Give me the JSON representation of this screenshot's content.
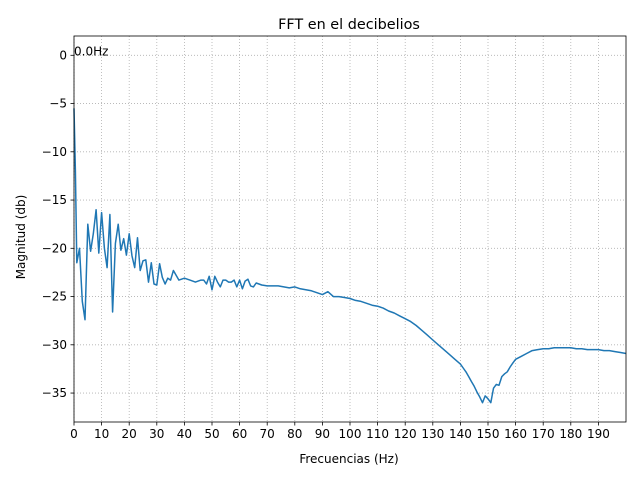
{
  "chart_data": {
    "type": "line",
    "title": "FFT en el decibelios",
    "xlabel": "Frecuencias (Hz)",
    "ylabel": "Magnitud (db)",
    "xlim": [
      0,
      200
    ],
    "ylim": [
      -38,
      2
    ],
    "grid": true,
    "line_color": "#1f77b4",
    "x_ticks": [
      0,
      10,
      20,
      30,
      40,
      50,
      60,
      70,
      80,
      90,
      100,
      110,
      120,
      130,
      140,
      150,
      160,
      170,
      180,
      190
    ],
    "x_tick_labels": [
      "0",
      "10",
      "20",
      "30",
      "40",
      "50",
      "60",
      "70",
      "80",
      "90",
      "100",
      "110",
      "120",
      "130",
      "140",
      "150",
      "160",
      "170",
      "180",
      "190"
    ],
    "y_ticks": [
      0,
      -5,
      -10,
      -15,
      -20,
      -25,
      -30,
      -35
    ],
    "y_tick_labels": [
      "0",
      "−5",
      "−10",
      "−15",
      "−20",
      "−25",
      "−30",
      "−35"
    ],
    "annotations": [
      {
        "text": "0.0Hz",
        "x": 0,
        "y": 0
      }
    ],
    "series": [
      {
        "x": [
          0,
          0.5,
          1,
          2,
          3,
          4,
          5,
          6,
          7,
          8,
          9,
          10,
          11,
          12,
          13,
          14,
          15,
          16,
          17,
          18,
          19,
          20,
          21,
          22,
          23,
          24,
          25,
          26,
          27,
          28,
          29,
          30,
          31,
          32,
          33,
          34,
          35,
          36,
          38,
          40,
          42,
          44,
          46,
          47,
          48,
          49,
          50,
          51,
          52,
          53,
          54,
          55,
          56,
          57,
          58,
          59,
          60,
          61,
          62,
          63,
          64,
          65,
          66,
          68,
          70,
          72,
          74,
          76,
          78,
          80,
          82,
          84,
          86,
          88,
          90,
          92,
          94,
          96,
          98,
          100,
          102,
          104,
          106,
          108,
          110,
          112,
          114,
          116,
          118,
          120,
          122,
          124,
          126,
          128,
          130,
          132,
          134,
          136,
          138,
          140,
          141,
          142,
          143,
          144,
          145,
          146,
          147,
          148,
          149,
          150,
          151,
          152,
          153,
          154,
          155,
          156,
          157,
          158,
          159,
          160,
          162,
          164,
          166,
          168,
          170,
          172,
          174,
          176,
          178,
          180,
          182,
          184,
          186,
          188,
          190,
          192,
          194,
          196,
          198,
          200
        ],
        "y": [
          -5.5,
          -12,
          -21.5,
          -20,
          -25.5,
          -27.4,
          -17.5,
          -20.3,
          -18.5,
          -16,
          -20.5,
          -16.3,
          -20,
          -22,
          -16.5,
          -26.6,
          -19.5,
          -17.5,
          -20.2,
          -19,
          -20.7,
          -18.5,
          -20.8,
          -22,
          -18.9,
          -22.3,
          -21.3,
          -21.2,
          -23.5,
          -21.5,
          -23.7,
          -23.8,
          -21.6,
          -23,
          -23.7,
          -23.1,
          -23.3,
          -22.3,
          -23.3,
          -23.1,
          -23.3,
          -23.5,
          -23.3,
          -23.3,
          -23.7,
          -22.9,
          -24.3,
          -22.9,
          -23.5,
          -24,
          -23.3,
          -23.3,
          -23.5,
          -23.5,
          -23.3,
          -24,
          -23.3,
          -24.2,
          -23.4,
          -23.2,
          -23.9,
          -24,
          -23.6,
          -23.8,
          -23.9,
          -23.9,
          -23.9,
          -24,
          -24.1,
          -24,
          -24.2,
          -24.3,
          -24.4,
          -24.6,
          -24.8,
          -24.5,
          -25,
          -25,
          -25.1,
          -25.2,
          -25.4,
          -25.5,
          -25.7,
          -25.9,
          -26,
          -26.2,
          -26.5,
          -26.7,
          -27,
          -27.3,
          -27.6,
          -28,
          -28.5,
          -29,
          -29.5,
          -30,
          -30.5,
          -31,
          -31.5,
          -32,
          -32.4,
          -32.8,
          -33.3,
          -33.8,
          -34.3,
          -34.9,
          -35.4,
          -36,
          -35.3,
          -35.6,
          -36,
          -34.5,
          -34.1,
          -34.2,
          -33.3,
          -33,
          -32.8,
          -32.3,
          -31.9,
          -31.5,
          -31.2,
          -30.9,
          -30.6,
          -30.5,
          -30.4,
          -30.4,
          -30.3,
          -30.3,
          -30.3,
          -30.3,
          -30.4,
          -30.4,
          -30.5,
          -30.5,
          -30.5,
          -30.6,
          -30.6,
          -30.7,
          -30.8,
          -30.9
        ]
      }
    ]
  }
}
